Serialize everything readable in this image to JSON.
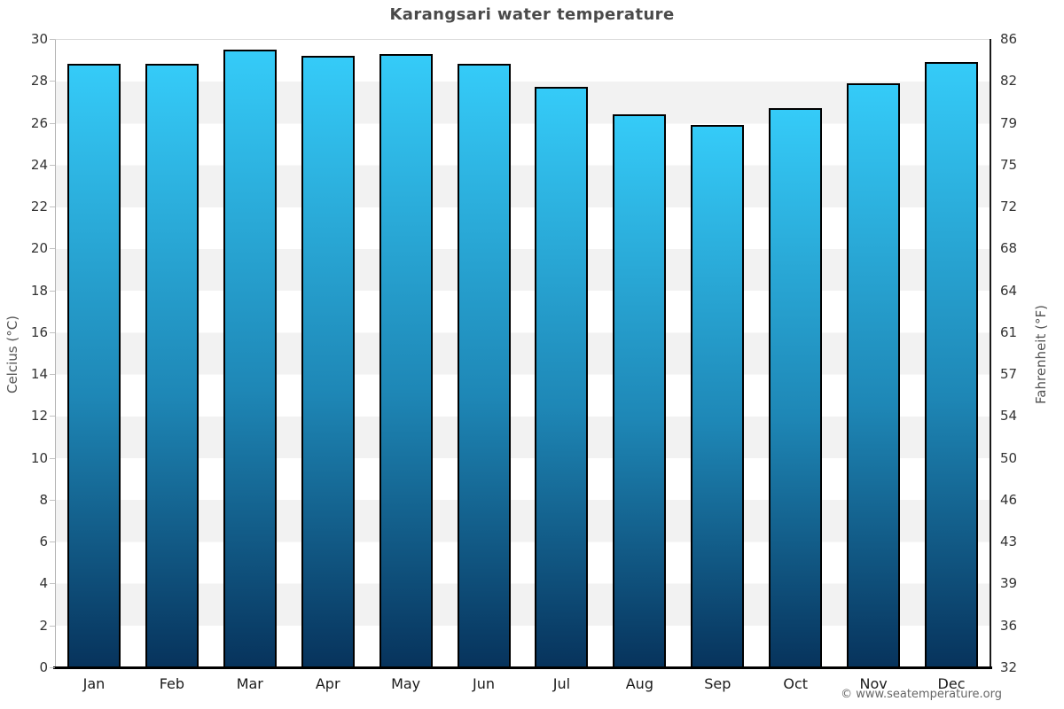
{
  "title": "Karangsari water temperature",
  "footer": {
    "copyright": "© www.seatemperature.org"
  },
  "colors": {
    "title_text": "#4a4a4a",
    "band_white": "#ffffff",
    "band_gray": "#f2f2f2",
    "bar_fill_top": "#35cbf8",
    "bar_fill_mid": "#1e87b6",
    "bar_fill_bottom": "#07335c",
    "bar_stroke": "#000000",
    "axis_bottom": "#000000"
  },
  "chart_data": {
    "type": "bar",
    "title": "Karangsari water temperature",
    "categories": [
      "Jan",
      "Feb",
      "Mar",
      "Apr",
      "May",
      "Jun",
      "Jul",
      "Aug",
      "Sep",
      "Oct",
      "Nov",
      "Dec"
    ],
    "series": [
      {
        "name": "Water temperature (°C)",
        "values": [
          28.8,
          28.8,
          29.5,
          29.2,
          29.3,
          28.8,
          27.7,
          26.4,
          25.9,
          26.7,
          27.9,
          28.9
        ]
      }
    ],
    "xlabel": "",
    "ylabel_left": "Celcius (°C)",
    "ylabel_right": "Fahrenheit (°F)",
    "ylim": [
      0,
      30
    ],
    "yticks_left": [
      0,
      2,
      4,
      6,
      8,
      10,
      12,
      14,
      16,
      18,
      20,
      22,
      24,
      26,
      28,
      30
    ],
    "yticks_right": [
      32,
      36,
      39,
      43,
      46,
      50,
      54,
      57,
      61,
      64,
      68,
      72,
      75,
      79,
      82,
      86
    ],
    "legend": "none",
    "grid": "alternating 2-degree horizontal bands (white / light gray)"
  }
}
